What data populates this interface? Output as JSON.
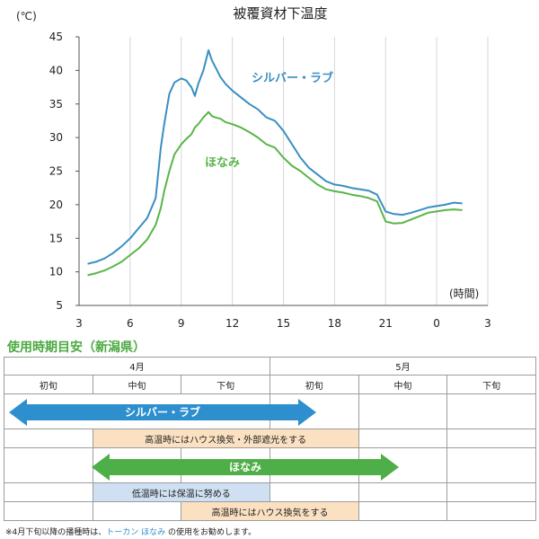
{
  "chart_data": {
    "type": "line",
    "title": "被覆資材下温度",
    "ylabel": "(℃)",
    "xlabel": "(時間)",
    "ylim": [
      5,
      45
    ],
    "yticks": [
      5,
      10,
      15,
      20,
      25,
      30,
      35,
      40,
      45
    ],
    "xticks": [
      "3",
      "6",
      "9",
      "12",
      "15",
      "18",
      "21",
      "0",
      "3"
    ],
    "grid": "vertical",
    "series": [
      {
        "name": "シルバー・ラブ",
        "color": "#3a8fc1",
        "x": [
          3.5,
          4.0,
          4.5,
          5.0,
          5.5,
          6.0,
          6.5,
          7.0,
          7.5,
          7.8,
          8.0,
          8.3,
          8.6,
          9.0,
          9.3,
          9.6,
          9.8,
          10.0,
          10.3,
          10.6,
          10.8,
          11.0,
          11.3,
          11.6,
          12.0,
          12.5,
          13.0,
          13.5,
          14.0,
          14.5,
          15.0,
          15.5,
          16.0,
          16.5,
          17.0,
          17.5,
          18.0,
          18.5,
          19.0,
          19.5,
          20.0,
          20.5,
          21.0,
          21.5,
          22.0,
          22.5,
          23.0,
          23.5,
          24.0,
          24.5,
          25.0,
          25.5
        ],
        "values": [
          11.2,
          11.5,
          12.0,
          12.8,
          13.8,
          15.0,
          16.5,
          18.0,
          21.0,
          28.5,
          32.0,
          36.5,
          38.2,
          38.8,
          38.5,
          37.5,
          36.2,
          38.0,
          40.0,
          43.0,
          41.5,
          40.5,
          39.0,
          38.0,
          37.0,
          36.0,
          35.0,
          34.2,
          33.0,
          32.5,
          31.0,
          29.0,
          27.0,
          25.5,
          24.5,
          23.5,
          23.0,
          22.8,
          22.5,
          22.3,
          22.1,
          21.5,
          19.0,
          18.6,
          18.5,
          18.8,
          19.2,
          19.6,
          19.8,
          20.0,
          20.3,
          20.2
        ]
      },
      {
        "name": "ほなみ",
        "color": "#59b548",
        "x": [
          3.5,
          4.0,
          4.5,
          5.0,
          5.5,
          6.0,
          6.5,
          7.0,
          7.5,
          7.8,
          8.0,
          8.3,
          8.6,
          9.0,
          9.3,
          9.6,
          9.8,
          10.0,
          10.3,
          10.6,
          10.8,
          11.0,
          11.3,
          11.6,
          12.0,
          12.5,
          13.0,
          13.5,
          14.0,
          14.5,
          15.0,
          15.5,
          16.0,
          16.5,
          17.0,
          17.5,
          18.0,
          18.5,
          19.0,
          19.5,
          20.0,
          20.5,
          21.0,
          21.5,
          22.0,
          22.5,
          23.0,
          23.5,
          24.0,
          24.5,
          25.0,
          25.5
        ],
        "values": [
          9.5,
          9.8,
          10.2,
          10.8,
          11.5,
          12.5,
          13.5,
          14.8,
          17.0,
          19.5,
          22.0,
          25.0,
          27.5,
          29.0,
          29.8,
          30.5,
          31.5,
          32.0,
          33.0,
          33.8,
          33.2,
          33.0,
          32.8,
          32.3,
          32.0,
          31.5,
          30.8,
          30.0,
          29.0,
          28.5,
          27.0,
          25.8,
          25.0,
          24.0,
          23.0,
          22.3,
          22.0,
          21.8,
          21.5,
          21.3,
          21.0,
          20.5,
          17.5,
          17.2,
          17.3,
          17.8,
          18.3,
          18.8,
          19.0,
          19.2,
          19.3,
          19.2
        ]
      }
    ]
  },
  "schedule": {
    "title": "使用時期目安（新潟県）",
    "months": [
      "4月",
      "5月"
    ],
    "periods": [
      "初旬",
      "中旬",
      "下旬",
      "初旬",
      "中旬",
      "下旬"
    ],
    "arrow_silver": "シルバー・ラブ",
    "arrow_honami": "ほなみ",
    "band_silver": "高温時にはハウス換気・外部遮光をする",
    "band_honami_low": "低温時には保温に努める",
    "band_honami_high": "高温時にはハウス換気をする",
    "colors": {
      "arrow_silver": "#2e8fcf",
      "arrow_honami": "#4eae47",
      "band_orange": "#fbe1c1",
      "band_blue": "#cfe0f2"
    }
  },
  "note": {
    "prefix": "※4月下旬以降の播種時は、",
    "highlight": "トーカン ほなみ",
    "suffix": " の使用をお勧めします。"
  }
}
